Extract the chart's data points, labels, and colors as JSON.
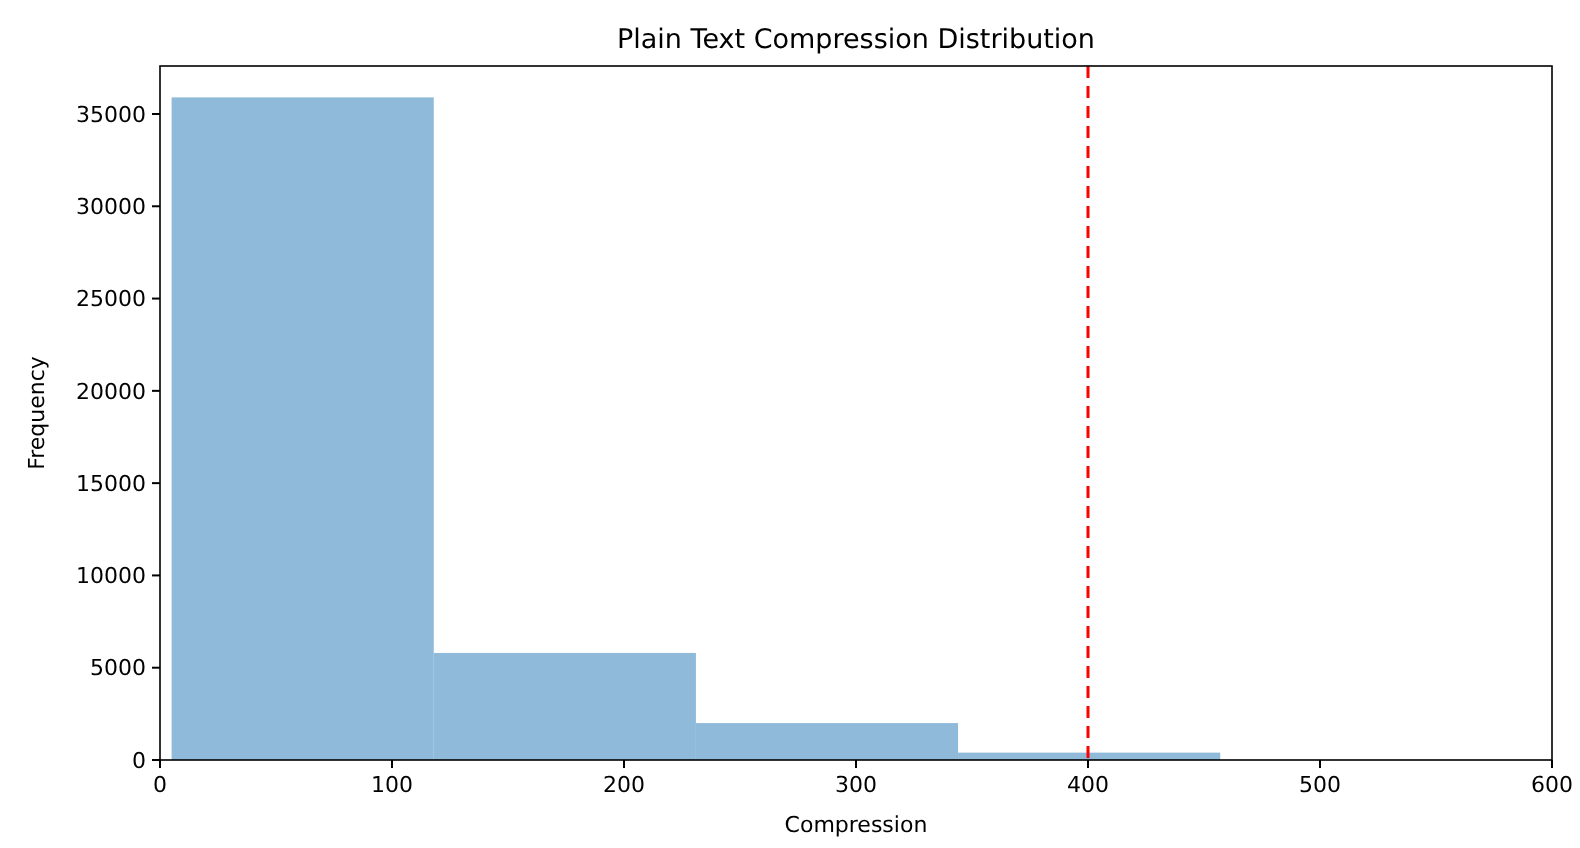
{
  "chart_data": {
    "type": "histogram",
    "title": "Plain Text Compression Distribution",
    "xlabel": "Compression",
    "ylabel": "Frequency",
    "bins": [
      5,
      118,
      231,
      344,
      457
    ],
    "values": [
      35900,
      5800,
      2000,
      400
    ],
    "color": "#8fbad9",
    "xlim": [
      0,
      600
    ],
    "xticks": [
      0,
      100,
      200,
      300,
      400,
      500,
      600
    ],
    "ylim": [
      0,
      37600
    ],
    "yticks": [
      0,
      5000,
      10000,
      15000,
      20000,
      25000,
      30000,
      35000
    ],
    "ref_lines": [
      {
        "axis": "x",
        "value": 400,
        "color": "#ff0000",
        "line_style": "dashed"
      }
    ]
  }
}
